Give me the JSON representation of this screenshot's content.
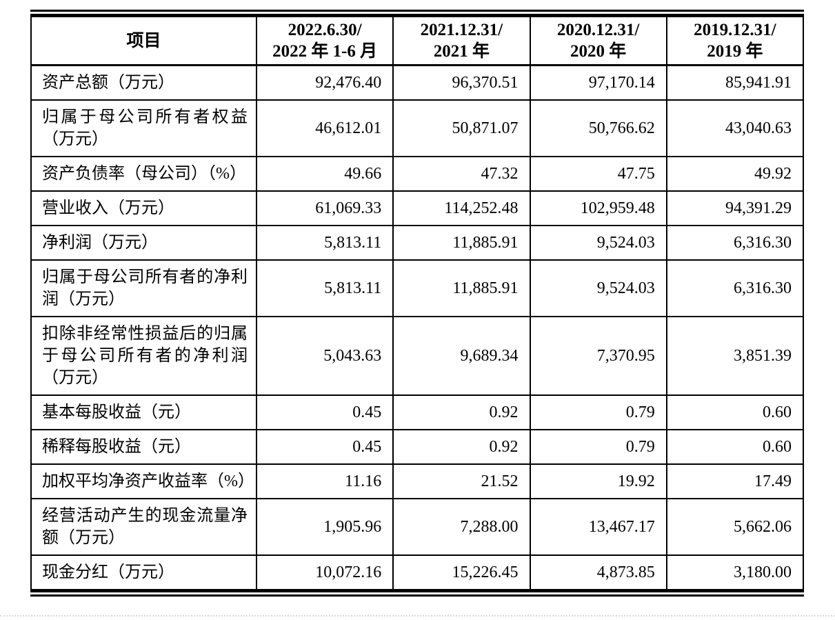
{
  "colors": {
    "ink": "#000000",
    "background": "#ffffff",
    "faint_divider": "#d9d9d9"
  },
  "table": {
    "header": {
      "item_col": "项目",
      "period_cols": [
        {
          "line1": "2022.6.30/",
          "line2": "2022 年 1-6 月"
        },
        {
          "line1": "2021.12.31/",
          "line2": "2021 年"
        },
        {
          "line1": "2020.12.31/",
          "line2": "2020 年"
        },
        {
          "line1": "2019.12.31/",
          "line2": "2019 年"
        }
      ]
    },
    "rows": [
      {
        "label": "资产总额（万元）",
        "values": [
          "92,476.40",
          "96,370.51",
          "97,170.14",
          "85,941.91"
        ]
      },
      {
        "label": "归属于母公司所有者权益（万元）",
        "values": [
          "46,612.01",
          "50,871.07",
          "50,766.62",
          "43,040.63"
        ]
      },
      {
        "label": "资产负债率（母公司）（%）",
        "values": [
          "49.66",
          "47.32",
          "47.75",
          "49.92"
        ]
      },
      {
        "label": "营业收入（万元）",
        "values": [
          "61,069.33",
          "114,252.48",
          "102,959.48",
          "94,391.29"
        ]
      },
      {
        "label": "净利润（万元）",
        "values": [
          "5,813.11",
          "11,885.91",
          "9,524.03",
          "6,316.30"
        ]
      },
      {
        "label": "归属于母公司所有者的净利润（万元）",
        "values": [
          "5,813.11",
          "11,885.91",
          "9,524.03",
          "6,316.30"
        ]
      },
      {
        "label": "扣除非经常性损益后的归属于母公司所有者的净利润（万元）",
        "values": [
          "5,043.63",
          "9,689.34",
          "7,370.95",
          "3,851.39"
        ]
      },
      {
        "label": "基本每股收益（元）",
        "values": [
          "0.45",
          "0.92",
          "0.79",
          "0.60"
        ]
      },
      {
        "label": "稀释每股收益（元）",
        "values": [
          "0.45",
          "0.92",
          "0.79",
          "0.60"
        ]
      },
      {
        "label": "加权平均净资产收益率（%）",
        "values": [
          "11.16",
          "21.52",
          "19.92",
          "17.49"
        ]
      },
      {
        "label": "经营活动产生的现金流量净额（万元）",
        "values": [
          "1,905.96",
          "7,288.00",
          "13,467.17",
          "5,662.06"
        ]
      },
      {
        "label": "现金分红（万元）",
        "values": [
          "10,072.16",
          "15,226.45",
          "4,873.85",
          "3,180.00"
        ]
      }
    ]
  }
}
